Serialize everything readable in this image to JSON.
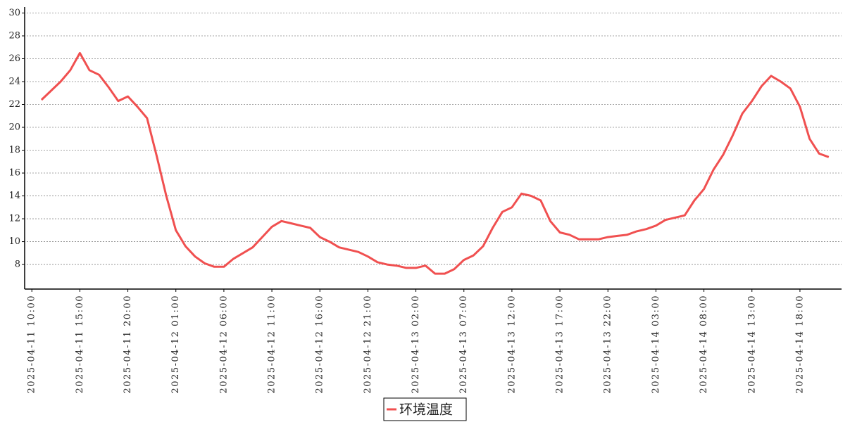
{
  "chart_data": {
    "type": "line",
    "x": [
      "2025-04-11 11:00",
      "2025-04-11 12:00",
      "2025-04-11 13:00",
      "2025-04-11 14:00",
      "2025-04-11 15:00",
      "2025-04-11 16:00",
      "2025-04-11 17:00",
      "2025-04-11 18:00",
      "2025-04-11 19:00",
      "2025-04-11 20:00",
      "2025-04-11 21:00",
      "2025-04-11 22:00",
      "2025-04-11 23:00",
      "2025-04-12 00:00",
      "2025-04-12 01:00",
      "2025-04-12 02:00",
      "2025-04-12 03:00",
      "2025-04-12 04:00",
      "2025-04-12 05:00",
      "2025-04-12 06:00",
      "2025-04-12 07:00",
      "2025-04-12 08:00",
      "2025-04-12 09:00",
      "2025-04-12 10:00",
      "2025-04-12 11:00",
      "2025-04-12 12:00",
      "2025-04-12 13:00",
      "2025-04-12 14:00",
      "2025-04-12 15:00",
      "2025-04-12 16:00",
      "2025-04-12 17:00",
      "2025-04-12 18:00",
      "2025-04-12 19:00",
      "2025-04-12 20:00",
      "2025-04-12 21:00",
      "2025-04-12 22:00",
      "2025-04-12 23:00",
      "2025-04-13 00:00",
      "2025-04-13 01:00",
      "2025-04-13 02:00",
      "2025-04-13 03:00",
      "2025-04-13 04:00",
      "2025-04-13 05:00",
      "2025-04-13 06:00",
      "2025-04-13 07:00",
      "2025-04-13 08:00",
      "2025-04-13 09:00",
      "2025-04-13 10:00",
      "2025-04-13 11:00",
      "2025-04-13 12:00",
      "2025-04-13 13:00",
      "2025-04-13 14:00",
      "2025-04-13 15:00",
      "2025-04-13 16:00",
      "2025-04-13 17:00",
      "2025-04-13 18:00",
      "2025-04-13 19:00",
      "2025-04-13 20:00",
      "2025-04-13 21:00",
      "2025-04-13 22:00",
      "2025-04-13 23:00",
      "2025-04-14 00:00",
      "2025-04-14 01:00",
      "2025-04-14 02:00",
      "2025-04-14 03:00",
      "2025-04-14 04:00",
      "2025-04-14 05:00",
      "2025-04-14 06:00",
      "2025-04-14 07:00",
      "2025-04-14 08:00",
      "2025-04-14 09:00",
      "2025-04-14 10:00",
      "2025-04-14 11:00",
      "2025-04-14 12:00",
      "2025-04-14 13:00",
      "2025-04-14 14:00",
      "2025-04-14 15:00",
      "2025-04-14 16:00",
      "2025-04-14 17:00",
      "2025-04-14 18:00",
      "2025-04-14 19:00",
      "2025-04-14 20:00",
      "2025-04-14 21:00"
    ],
    "series": [
      {
        "name": "环境温度",
        "color": "#f05050",
        "values": [
          22.4,
          23.2,
          24.0,
          25.0,
          26.5,
          25.0,
          24.6,
          23.5,
          22.3,
          22.7,
          21.8,
          20.8,
          17.5,
          14.0,
          11.0,
          9.6,
          8.7,
          8.1,
          7.8,
          7.8,
          8.5,
          9.0,
          9.5,
          10.4,
          11.3,
          11.8,
          11.6,
          11.4,
          11.2,
          10.4,
          10.0,
          9.5,
          9.3,
          9.1,
          8.7,
          8.2,
          8.0,
          7.9,
          7.7,
          7.7,
          7.9,
          7.2,
          7.2,
          7.6,
          8.4,
          8.8,
          9.6,
          11.2,
          12.6,
          13.0,
          14.2,
          14.0,
          13.6,
          11.8,
          10.8,
          10.6,
          10.2,
          10.2,
          10.2,
          10.4,
          10.5,
          10.6,
          10.9,
          11.1,
          11.4,
          11.9,
          12.1,
          12.3,
          13.6,
          14.6,
          16.3,
          17.6,
          19.3,
          21.2,
          22.3,
          23.6,
          24.5,
          24.0,
          23.4,
          21.8,
          19.0,
          17.7,
          17.4
        ]
      }
    ],
    "xlim": [
      "2025-04-11 09:15",
      "2025-04-14 22:20"
    ],
    "xticks": [
      "2025-04-11 10:00",
      "2025-04-11 15:00",
      "2025-04-11 20:00",
      "2025-04-12 01:00",
      "2025-04-12 06:00",
      "2025-04-12 11:00",
      "2025-04-12 16:00",
      "2025-04-12 21:00",
      "2025-04-13 02:00",
      "2025-04-13 07:00",
      "2025-04-13 12:00",
      "2025-04-13 17:00",
      "2025-04-13 22:00",
      "2025-04-14 03:00",
      "2025-04-14 08:00",
      "2025-04-14 13:00",
      "2025-04-14 18:00"
    ],
    "ylim": [
      5.85,
      30
    ],
    "yticks": [
      8,
      10,
      12,
      14,
      16,
      18,
      20,
      22,
      24,
      26,
      28,
      30
    ],
    "grid": true
  }
}
